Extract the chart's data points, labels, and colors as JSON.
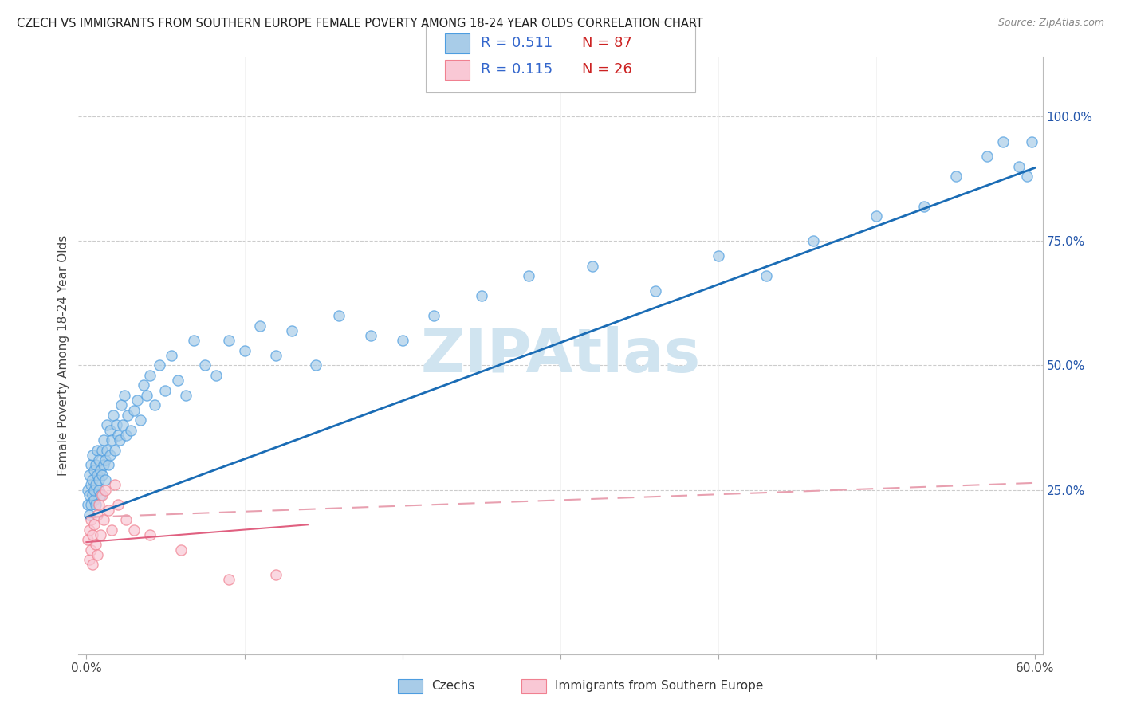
{
  "title": "CZECH VS IMMIGRANTS FROM SOUTHERN EUROPE FEMALE POVERTY AMONG 18-24 YEAR OLDS CORRELATION CHART",
  "source": "Source: ZipAtlas.com",
  "ylabel": "Female Poverty Among 18-24 Year Olds",
  "xlim": [
    -0.005,
    0.605
  ],
  "ylim": [
    -0.08,
    1.12
  ],
  "xtick_positions": [
    0.0,
    0.1,
    0.2,
    0.3,
    0.4,
    0.5,
    0.6
  ],
  "xticklabels": [
    "0.0%",
    "",
    "",
    "",
    "",
    "",
    "60.0%"
  ],
  "yticks_right": [
    0.0,
    0.25,
    0.5,
    0.75,
    1.0
  ],
  "yticklabels_right": [
    "",
    "25.0%",
    "50.0%",
    "75.0%",
    "100.0%"
  ],
  "blue_fill_color": "#a8cce8",
  "blue_edge_color": "#4d9de0",
  "pink_fill_color": "#f9c8d5",
  "pink_edge_color": "#f08090",
  "blue_line_color": "#1a6cb5",
  "pink_line_color": "#e06080",
  "pink_dash_color": "#e8a0b0",
  "right_axis_color": "#2255aa",
  "legend_R_color": "#3366cc",
  "legend_N_color": "#cc2222",
  "watermark": "ZIPAtlas",
  "watermark_color": "#d0e4f0",
  "legend_bottom_blue": "Czechs",
  "legend_bottom_pink": "Immigrants from Southern Europe",
  "blue_intercept": 0.195,
  "blue_slope": 1.17,
  "pink_solid_intercept": 0.145,
  "pink_solid_slope": 0.25,
  "pink_dash_intercept": 0.195,
  "pink_dash_slope": 0.115,
  "blue_x": [
    0.001,
    0.001,
    0.002,
    0.002,
    0.002,
    0.003,
    0.003,
    0.003,
    0.004,
    0.004,
    0.004,
    0.005,
    0.005,
    0.005,
    0.006,
    0.006,
    0.006,
    0.007,
    0.007,
    0.008,
    0.008,
    0.008,
    0.009,
    0.009,
    0.01,
    0.01,
    0.011,
    0.011,
    0.012,
    0.012,
    0.013,
    0.013,
    0.014,
    0.015,
    0.015,
    0.016,
    0.017,
    0.018,
    0.019,
    0.02,
    0.021,
    0.022,
    0.023,
    0.024,
    0.025,
    0.026,
    0.028,
    0.03,
    0.032,
    0.034,
    0.036,
    0.038,
    0.04,
    0.043,
    0.046,
    0.05,
    0.054,
    0.058,
    0.063,
    0.068,
    0.075,
    0.082,
    0.09,
    0.1,
    0.11,
    0.12,
    0.13,
    0.145,
    0.16,
    0.18,
    0.2,
    0.22,
    0.25,
    0.28,
    0.32,
    0.36,
    0.4,
    0.43,
    0.46,
    0.5,
    0.53,
    0.55,
    0.57,
    0.58,
    0.59,
    0.595,
    0.598
  ],
  "blue_y": [
    0.22,
    0.25,
    0.2,
    0.28,
    0.24,
    0.26,
    0.22,
    0.3,
    0.24,
    0.27,
    0.32,
    0.23,
    0.25,
    0.29,
    0.26,
    0.3,
    0.22,
    0.28,
    0.33,
    0.25,
    0.27,
    0.31,
    0.24,
    0.29,
    0.28,
    0.33,
    0.3,
    0.35,
    0.27,
    0.31,
    0.33,
    0.38,
    0.3,
    0.32,
    0.37,
    0.35,
    0.4,
    0.33,
    0.38,
    0.36,
    0.35,
    0.42,
    0.38,
    0.44,
    0.36,
    0.4,
    0.37,
    0.41,
    0.43,
    0.39,
    0.46,
    0.44,
    0.48,
    0.42,
    0.5,
    0.45,
    0.52,
    0.47,
    0.44,
    0.55,
    0.5,
    0.48,
    0.55,
    0.53,
    0.58,
    0.52,
    0.57,
    0.5,
    0.6,
    0.56,
    0.55,
    0.6,
    0.64,
    0.68,
    0.7,
    0.65,
    0.72,
    0.68,
    0.75,
    0.8,
    0.82,
    0.88,
    0.92,
    0.95,
    0.9,
    0.88,
    0.95
  ],
  "pink_x": [
    0.001,
    0.002,
    0.002,
    0.003,
    0.003,
    0.004,
    0.004,
    0.005,
    0.006,
    0.007,
    0.007,
    0.008,
    0.009,
    0.01,
    0.011,
    0.012,
    0.014,
    0.016,
    0.018,
    0.02,
    0.025,
    0.03,
    0.04,
    0.06,
    0.09,
    0.12
  ],
  "pink_y": [
    0.15,
    0.11,
    0.17,
    0.13,
    0.19,
    0.1,
    0.16,
    0.18,
    0.14,
    0.12,
    0.2,
    0.22,
    0.16,
    0.24,
    0.19,
    0.25,
    0.21,
    0.17,
    0.26,
    0.22,
    0.19,
    0.17,
    0.16,
    0.13,
    0.07,
    0.08
  ]
}
